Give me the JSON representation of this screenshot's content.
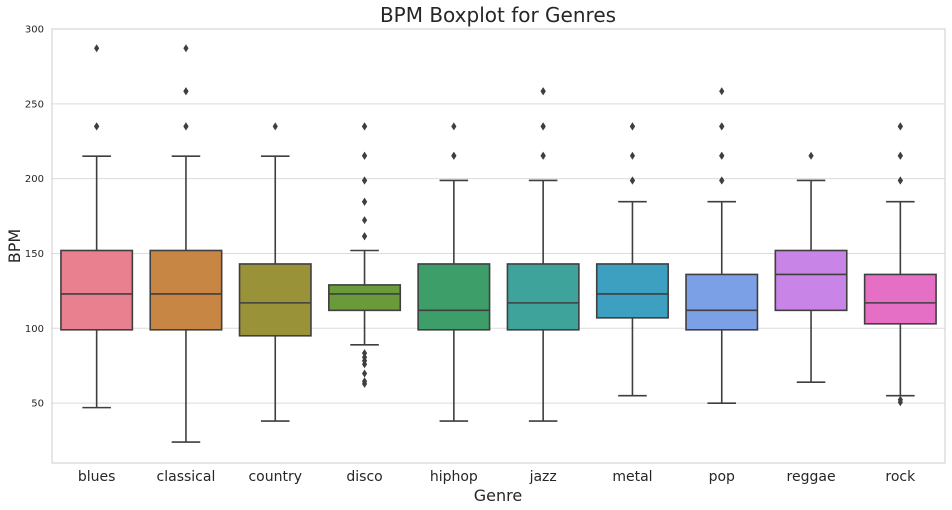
{
  "chart_data": {
    "type": "boxplot",
    "title": "BPM Boxplot for Genres",
    "xlabel": "Genre",
    "ylabel": "BPM",
    "ylim": [
      10,
      300
    ],
    "yticks": [
      50,
      100,
      150,
      200,
      250,
      300
    ],
    "grid": "horizontal",
    "categories": [
      "blues",
      "classical",
      "country",
      "disco",
      "hiphop",
      "jazz",
      "metal",
      "pop",
      "reggae",
      "rock"
    ],
    "boxes": [
      {
        "category": "blues",
        "q1": 99,
        "median": 123,
        "q3": 152,
        "whisker_low": 47,
        "whisker_high": 215,
        "outliers": [
          234.9,
          234.9,
          287.1
        ],
        "color": "#e8808f"
      },
      {
        "category": "classical",
        "q1": 99,
        "median": 123,
        "q3": 152,
        "whisker_low": 24,
        "whisker_high": 215,
        "outliers": [
          234.9,
          234.9,
          258.4,
          258.4,
          287.1
        ],
        "color": "#c88645"
      },
      {
        "category": "country",
        "q1": 95,
        "median": 117,
        "q3": 143,
        "whisker_low": 38,
        "whisker_high": 215,
        "outliers": [
          234.9
        ],
        "color": "#9a9238"
      },
      {
        "category": "disco",
        "q1": 112,
        "median": 123,
        "q3": 129,
        "whisker_low": 89,
        "whisker_high": 152,
        "outliers": [
          234.9,
          234.9,
          215.3,
          215.3,
          198.8,
          198.8,
          184.6,
          184.6,
          172.3,
          161.5,
          161.5,
          83.4,
          80.7,
          78.3,
          76,
          69.8,
          64.6,
          62.9
        ],
        "color": "#6a9a3a"
      },
      {
        "category": "hiphop",
        "q1": 99,
        "median": 112,
        "q3": 143,
        "whisker_low": 38,
        "whisker_high": 198.8,
        "outliers": [
          234.9,
          215.3,
          215.3
        ],
        "color": "#3d9e6a"
      },
      {
        "category": "jazz",
        "q1": 99,
        "median": 117,
        "q3": 143,
        "whisker_low": 38,
        "whisker_high": 198.8,
        "outliers": [
          258.4,
          258.4,
          234.9,
          234.9,
          215.3,
          215.3
        ],
        "color": "#3ea39a"
      },
      {
        "category": "metal",
        "q1": 107,
        "median": 123,
        "q3": 143,
        "whisker_low": 55,
        "whisker_high": 184.6,
        "outliers": [
          234.9,
          234.9,
          215.3,
          198.8,
          198.8
        ],
        "color": "#3ea0c0"
      },
      {
        "category": "pop",
        "q1": 99,
        "median": 112,
        "q3": 136,
        "whisker_low": 50,
        "whisker_high": 184.6,
        "outliers": [
          258.4,
          234.9,
          234.9,
          215.3,
          215.3,
          198.8,
          198.8
        ],
        "color": "#7ca0e6"
      },
      {
        "category": "reggae",
        "q1": 112,
        "median": 136,
        "q3": 152,
        "whisker_low": 64,
        "whisker_high": 198.8,
        "outliers": [
          215.3
        ],
        "color": "#c884e6"
      },
      {
        "category": "rock",
        "q1": 103,
        "median": 117,
        "q3": 136,
        "whisker_low": 55,
        "whisker_high": 184.6,
        "outliers": [
          234.9,
          234.9,
          215.3,
          215.3,
          198.8,
          198.8,
          52.3,
          50.6
        ],
        "color": "#e46fc4"
      }
    ]
  }
}
